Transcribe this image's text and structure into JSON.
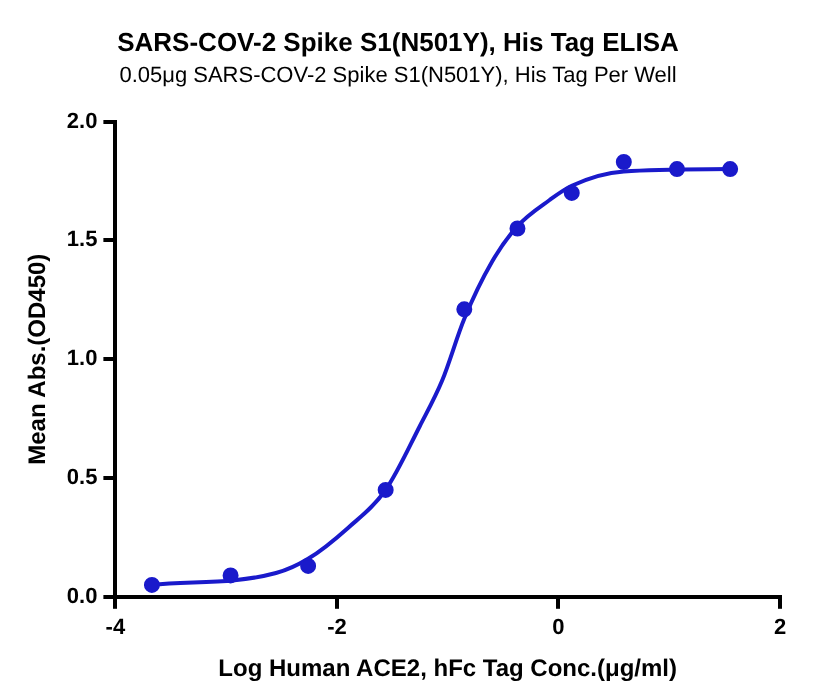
{
  "chart_data": {
    "type": "scatter",
    "title": "SARS-COV-2 Spike S1(N501Y), His Tag ELISA",
    "subtitle": "0.05μg SARS-COV-2 Spike S1(N501Y), His Tag Per Well",
    "xlabel": "Log Human ACE2, hFc Tag Conc.(μg/ml)",
    "ylabel": "Mean Abs.(OD450)",
    "x": [
      -3.67,
      -2.96,
      -2.26,
      -1.56,
      -0.85,
      -0.37,
      0.12,
      0.59,
      1.07,
      1.55
    ],
    "series": [
      {
        "marker": "circle",
        "color": "#1a1acb",
        "values": [
          0.05,
          0.09,
          0.13,
          0.45,
          1.21,
          1.55,
          1.7,
          1.83,
          1.8,
          1.8
        ]
      },
      {
        "type": "line",
        "marker": "none",
        "color": "#1a1acb",
        "x": [
          -3.67,
          -2.55,
          -2.26,
          -1.9,
          -1.56,
          -1.25,
          -1.05,
          -0.85,
          -0.6,
          -0.37,
          -0.08,
          0.12,
          0.59,
          1.55
        ],
        "values": [
          0.05,
          0.1,
          0.16,
          0.29,
          0.45,
          0.72,
          0.91,
          1.17,
          1.41,
          1.56,
          1.67,
          1.73,
          1.79,
          1.8
        ]
      }
    ],
    "xlim": [
      -4,
      2
    ],
    "xticks": [
      -4,
      -2,
      0,
      2
    ],
    "ylim": [
      0,
      2
    ],
    "yticks": [
      {
        "value": 0,
        "label": "0.0"
      },
      {
        "value": 0.5,
        "label": "0.5"
      },
      {
        "value": 1,
        "label": "1.0"
      },
      {
        "value": 1.5,
        "label": "1.5"
      },
      {
        "value": 2,
        "label": "2.0"
      }
    ],
    "grid": false,
    "legend": false
  }
}
